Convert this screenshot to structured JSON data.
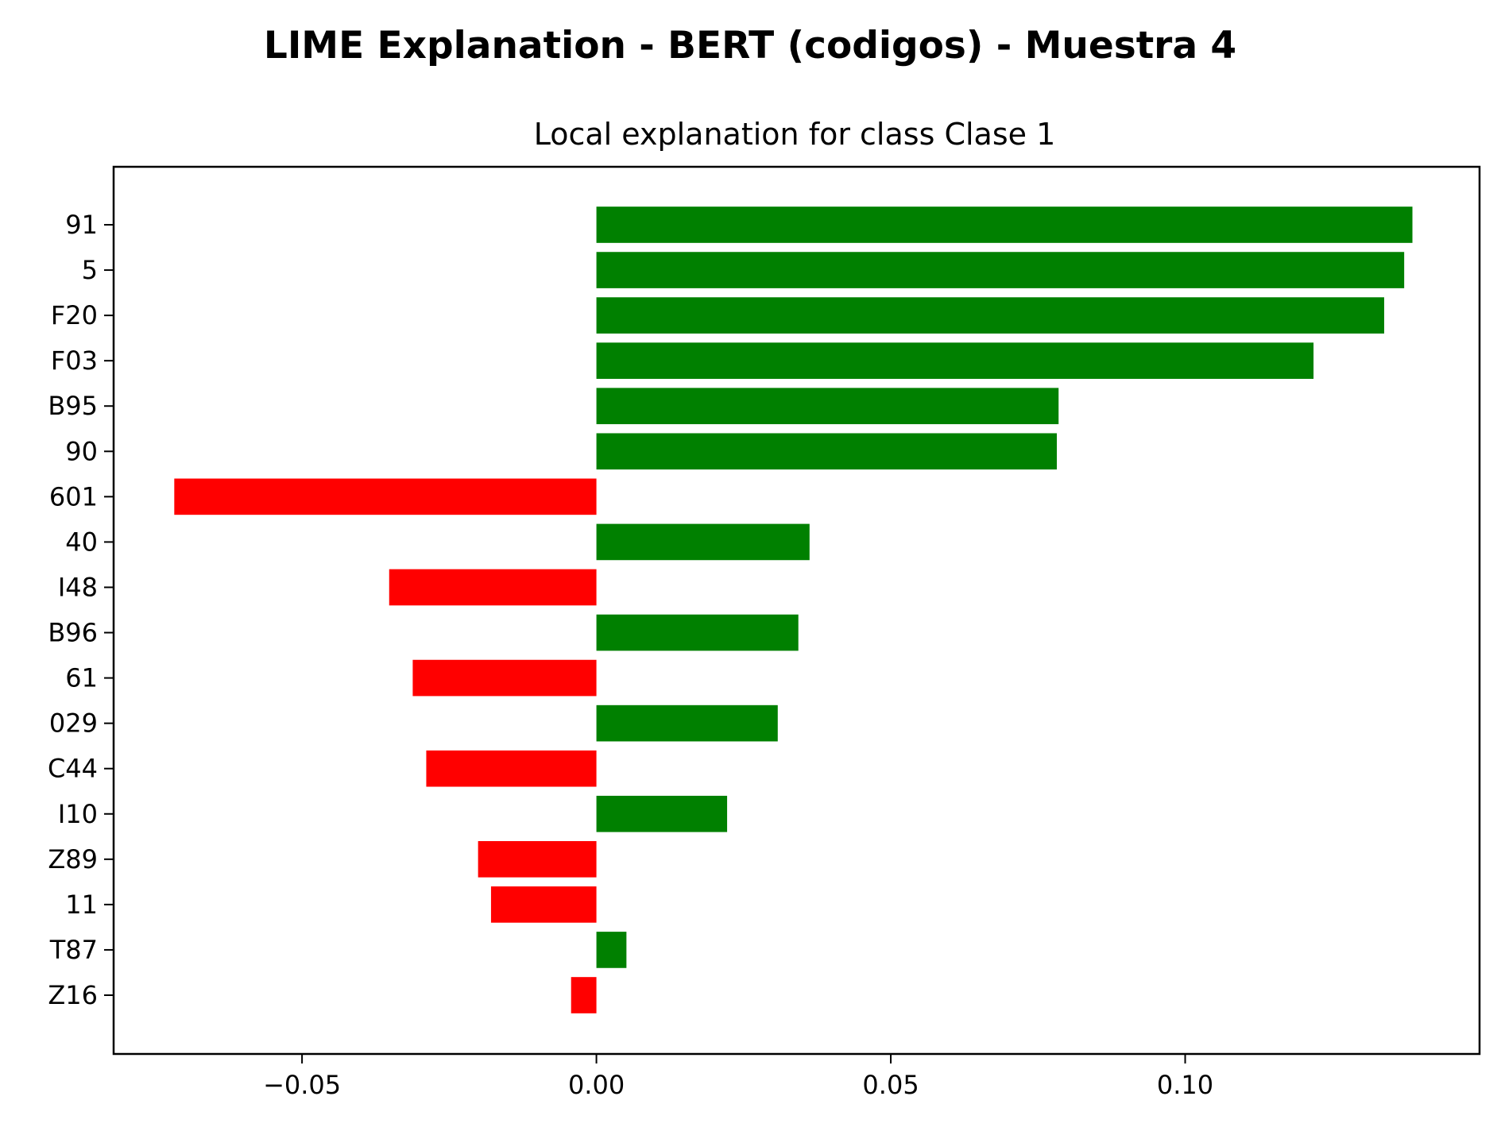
{
  "figure": {
    "title": "LIME Explanation - BERT (codigos) - Muestra 4"
  },
  "chart_data": {
    "type": "bar",
    "orientation": "horizontal",
    "title": "Local explanation for class Clase 1",
    "xlabel": "",
    "ylabel": "",
    "xlim": [
      -0.082,
      0.15
    ],
    "xticks": [
      -0.05,
      0.0,
      0.05,
      0.1
    ],
    "xtick_labels": [
      "−0.05",
      "0.00",
      "0.05",
      "0.10"
    ],
    "categories": [
      "91",
      "5",
      "F20",
      "F03",
      "B95",
      "90",
      "601",
      "40",
      "I48",
      "B96",
      "61",
      "029",
      "C44",
      "I10",
      "Z89",
      "11",
      "T87",
      "Z16"
    ],
    "values": [
      0.1386,
      0.1372,
      0.1338,
      0.1218,
      0.0785,
      0.0782,
      -0.0717,
      0.0362,
      -0.0352,
      0.0343,
      -0.0312,
      0.0308,
      -0.0289,
      0.0222,
      -0.0201,
      -0.0179,
      0.0051,
      -0.0043
    ],
    "colors": {
      "positive": "#008000",
      "negative": "#ff0000"
    },
    "grid": false,
    "legend": "none"
  }
}
